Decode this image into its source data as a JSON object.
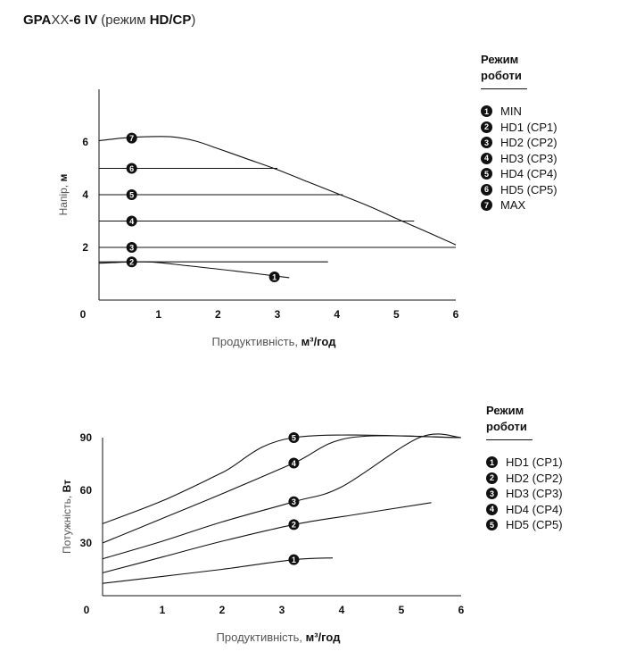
{
  "title": {
    "model_bold": "GPA",
    "model_mid": "XX",
    "model_tail": "-6 IV",
    "paren_open": "(режим ",
    "paren_mode": "HD/CP",
    "paren_close": ")"
  },
  "chart_data": [
    {
      "type": "line",
      "ylabel_text": "Напір, ",
      "ylabel_unit": "м",
      "xlabel_text": "Продуктивність, ",
      "xlabel_unit": "м³/год",
      "xlim": [
        0,
        6
      ],
      "ylim": [
        0,
        8
      ],
      "xticks": [
        "0",
        "1",
        "2",
        "3",
        "4",
        "5",
        "6"
      ],
      "yticks": [
        "2",
        "4",
        "6"
      ],
      "series": [
        {
          "marker": "1",
          "points": [
            [
              0,
              1.4
            ],
            [
              0.8,
              1.45
            ],
            [
              1.5,
              1.3
            ],
            [
              2.3,
              1.1
            ],
            [
              3.2,
              0.85
            ]
          ],
          "marker_at": [
            2.95,
            0.88
          ]
        },
        {
          "marker": "2",
          "points": [
            [
              0,
              1.45
            ],
            [
              3.85,
              1.45
            ]
          ],
          "marker_at": [
            0.55,
            1.45
          ]
        },
        {
          "marker": "3",
          "points": [
            [
              0,
              2.0
            ],
            [
              6,
              2.0
            ]
          ],
          "marker_at": [
            0.55,
            2.0
          ]
        },
        {
          "marker": "4",
          "points": [
            [
              0,
              3.0
            ],
            [
              5.3,
              3.0
            ]
          ],
          "marker_at": [
            0.55,
            3.0
          ]
        },
        {
          "marker": "5",
          "points": [
            [
              0,
              4.0
            ],
            [
              4.1,
              4.0
            ]
          ],
          "marker_at": [
            0.55,
            4.0
          ]
        },
        {
          "marker": "6",
          "points": [
            [
              0,
              5.0
            ],
            [
              3.0,
              5.0
            ]
          ],
          "marker_at": [
            0.55,
            5.0
          ]
        },
        {
          "marker": "7",
          "points": [
            [
              0,
              6.05
            ],
            [
              0.4,
              6.15
            ],
            [
              0.8,
              6.2
            ],
            [
              1.2,
              6.2
            ],
            [
              1.6,
              6.05
            ],
            [
              2.0,
              5.75
            ],
            [
              2.5,
              5.35
            ],
            [
              3.0,
              4.95
            ],
            [
              3.5,
              4.5
            ],
            [
              4.0,
              4.05
            ],
            [
              4.5,
              3.6
            ],
            [
              5.0,
              3.1
            ],
            [
              5.5,
              2.6
            ],
            [
              6.0,
              2.1
            ]
          ],
          "marker_at": [
            0.55,
            6.15
          ]
        }
      ]
    },
    {
      "type": "line",
      "ylabel_text": "Потужність, ",
      "ylabel_unit": "Вт",
      "xlabel_text": "Продуктивність, ",
      "xlabel_unit": "м³/год",
      "xlim": [
        0,
        6
      ],
      "ylim": [
        0,
        90
      ],
      "xticks": [
        "0",
        "1",
        "2",
        "3",
        "4",
        "5",
        "6"
      ],
      "yticks": [
        "30",
        "60",
        "90"
      ],
      "series": [
        {
          "marker": "1",
          "points": [
            [
              0,
              7
            ],
            [
              1,
              11
            ],
            [
              2,
              15
            ],
            [
              3.2,
              20.5
            ],
            [
              3.85,
              21.5
            ]
          ],
          "marker_at": [
            3.2,
            20.5
          ]
        },
        {
          "marker": "2",
          "points": [
            [
              0,
              13
            ],
            [
              1,
              22
            ],
            [
              2,
              31
            ],
            [
              3.2,
              40.5
            ],
            [
              4.2,
              46
            ],
            [
              5.5,
              53
            ]
          ],
          "marker_at": [
            3.2,
            40.5
          ]
        },
        {
          "marker": "3",
          "points": [
            [
              0,
              21
            ],
            [
              1,
              31
            ],
            [
              2,
              42
            ],
            [
              3.2,
              53.5
            ],
            [
              4.0,
              62
            ],
            [
              5.3,
              90
            ],
            [
              6.0,
              90
            ]
          ],
          "marker_at": [
            3.2,
            53.5
          ]
        },
        {
          "marker": "4",
          "points": [
            [
              0,
              30
            ],
            [
              1,
              44
            ],
            [
              2,
              58
            ],
            [
              3.2,
              75.5
            ],
            [
              4.15,
              90
            ],
            [
              6.0,
              90
            ]
          ],
          "marker_at": [
            3.2,
            75.5
          ]
        },
        {
          "marker": "5",
          "points": [
            [
              0,
              41
            ],
            [
              1,
              54
            ],
            [
              2,
              70
            ],
            [
              3.2,
              90
            ],
            [
              6.0,
              90
            ]
          ],
          "marker_at": [
            3.2,
            90
          ]
        }
      ]
    }
  ],
  "legend_top": {
    "head1": "Режим",
    "head2": "роботи",
    "items": [
      {
        "num": "1",
        "label": "MIN"
      },
      {
        "num": "2",
        "label": "HD1 (CP1)"
      },
      {
        "num": "3",
        "label": "HD2 (CP2)"
      },
      {
        "num": "4",
        "label": "HD3 (CP3)"
      },
      {
        "num": "5",
        "label": "HD4 (CP4)"
      },
      {
        "num": "6",
        "label": "HD5 (CP5)"
      },
      {
        "num": "7",
        "label": "MAX"
      }
    ]
  },
  "legend_bottom": {
    "head1": "Режим",
    "head2": "роботи",
    "items": [
      {
        "num": "1",
        "label": "HD1 (CP1)"
      },
      {
        "num": "2",
        "label": "HD2 (CP2)"
      },
      {
        "num": "3",
        "label": "HD3 (CP3)"
      },
      {
        "num": "4",
        "label": "HD4 (CP4)"
      },
      {
        "num": "5",
        "label": "HD5 (CP5)"
      }
    ]
  }
}
